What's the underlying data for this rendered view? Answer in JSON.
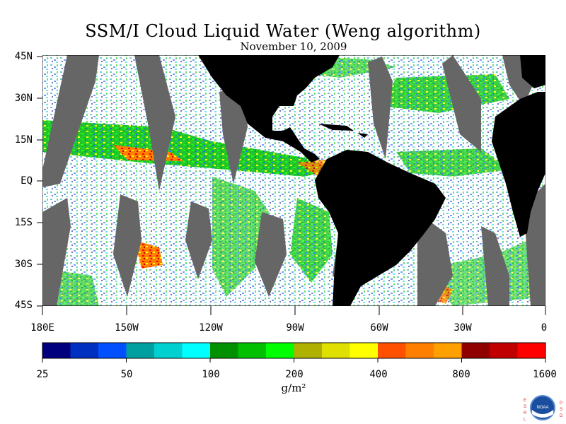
{
  "title": "SSM/I Cloud Liquid Water (Weng algorithm)",
  "subtitle": "November 10, 2009",
  "map": {
    "lat_labels": [
      "45N",
      "30N",
      "15N",
      "EQ",
      "15S",
      "30S",
      "45S"
    ],
    "lon_labels": [
      "180E",
      "150W",
      "120W",
      "90W",
      "60W",
      "30W",
      "0"
    ],
    "land_color": "#000000",
    "no_data_color": "#666666",
    "background_color": "#ffffff"
  },
  "colorbar": {
    "colors": [
      "#00007f",
      "#0030c0",
      "#0050ff",
      "#00a0a0",
      "#00d0d0",
      "#00ffff",
      "#009000",
      "#00c000",
      "#00ff00",
      "#b0b000",
      "#e0e000",
      "#ffff00",
      "#ff5000",
      "#ff8000",
      "#ffa000",
      "#900000",
      "#c00000",
      "#ff0000"
    ],
    "tick_labels": [
      "25",
      "50",
      "100",
      "200",
      "400",
      "800",
      "1600"
    ],
    "units": "g/m²"
  },
  "logo": {
    "left_text": "ESRL",
    "right_text": "PSD",
    "center_text": "NOAA",
    "accent_color": "#e02020",
    "name": "noaa-logo"
  }
}
